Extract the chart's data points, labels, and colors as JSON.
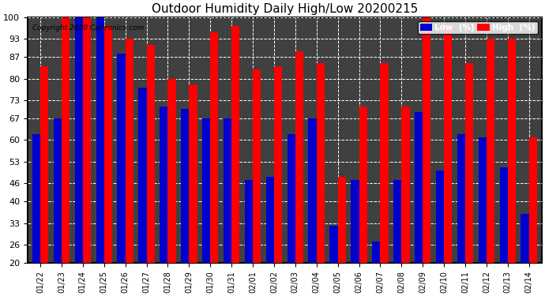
{
  "title": "Outdoor Humidity Daily High/Low 20200215",
  "copyright": "Copyright 2020 Cartronics.com",
  "dates": [
    "01/22",
    "01/23",
    "01/24",
    "01/25",
    "01/26",
    "01/27",
    "01/28",
    "01/29",
    "01/30",
    "01/31",
    "02/01",
    "02/02",
    "02/03",
    "02/04",
    "02/05",
    "02/06",
    "02/07",
    "02/08",
    "02/09",
    "02/10",
    "02/11",
    "02/12",
    "02/13",
    "02/14"
  ],
  "high": [
    84,
    100,
    100,
    97,
    93,
    91,
    80,
    78,
    95,
    97,
    83,
    84,
    89,
    85,
    48,
    71,
    85,
    71,
    100,
    96,
    85,
    93,
    93,
    61
  ],
  "low": [
    62,
    67,
    100,
    100,
    88,
    77,
    71,
    70,
    67,
    67,
    47,
    48,
    62,
    67,
    32,
    47,
    27,
    47,
    69,
    50,
    62,
    61,
    51,
    36
  ],
  "high_color": "#ff0000",
  "low_color": "#0000cc",
  "plot_bg_color": "#404040",
  "fig_bg_color": "#ffffff",
  "grid_color": "#ffffff",
  "ylim": [
    20,
    100
  ],
  "yticks": [
    20,
    26,
    33,
    40,
    46,
    53,
    60,
    67,
    73,
    80,
    87,
    93,
    100
  ],
  "bar_width": 0.38,
  "legend_low_label": "Low  (%)",
  "legend_high_label": "High  (%)"
}
